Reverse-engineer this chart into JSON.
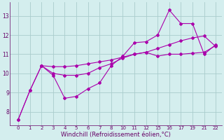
{
  "background_color": "#d4eeee",
  "grid_color": "#aacccc",
  "line_color": "#aa00aa",
  "xlabel": "Windchill (Refroidissement éolien,°C)",
  "xlabel_fontsize": 6.0,
  "yticks": [
    8,
    9,
    10,
    11,
    12,
    13
  ],
  "xtick_labels": [
    "0",
    "1",
    "2",
    "3",
    "4",
    "5",
    "6",
    "7",
    "8",
    "10",
    "11",
    "12",
    "15",
    "16",
    "17",
    "19",
    "21",
    "22"
  ],
  "ylim": [
    7.3,
    13.7
  ],
  "lines": [
    {
      "xi": [
        0,
        1,
        2,
        3,
        4,
        5,
        6,
        7,
        8,
        9,
        10,
        11,
        12,
        13,
        14,
        15,
        16,
        17
      ],
      "y": [
        7.6,
        9.1,
        10.4,
        9.9,
        8.7,
        8.8,
        9.2,
        9.5,
        10.4,
        10.9,
        11.6,
        11.65,
        12.0,
        13.3,
        12.6,
        12.6,
        11.0,
        11.5
      ]
    },
    {
      "xi": [
        0,
        1,
        2,
        3,
        4,
        5,
        6,
        7,
        8,
        9,
        10,
        11,
        12,
        13,
        14,
        15,
        16,
        17
      ],
      "y": [
        7.6,
        9.1,
        10.4,
        10.0,
        9.9,
        9.9,
        10.0,
        10.3,
        10.5,
        10.8,
        11.0,
        11.1,
        10.9,
        11.0,
        11.0,
        11.05,
        11.1,
        11.45
      ]
    },
    {
      "xi": [
        2,
        3,
        4,
        5,
        6,
        7,
        8,
        9,
        10,
        11,
        12,
        13,
        14,
        15,
        16,
        17
      ],
      "y": [
        10.4,
        10.35,
        10.35,
        10.4,
        10.5,
        10.6,
        10.7,
        10.85,
        11.0,
        11.1,
        11.3,
        11.5,
        11.7,
        11.85,
        11.95,
        11.4
      ]
    }
  ]
}
